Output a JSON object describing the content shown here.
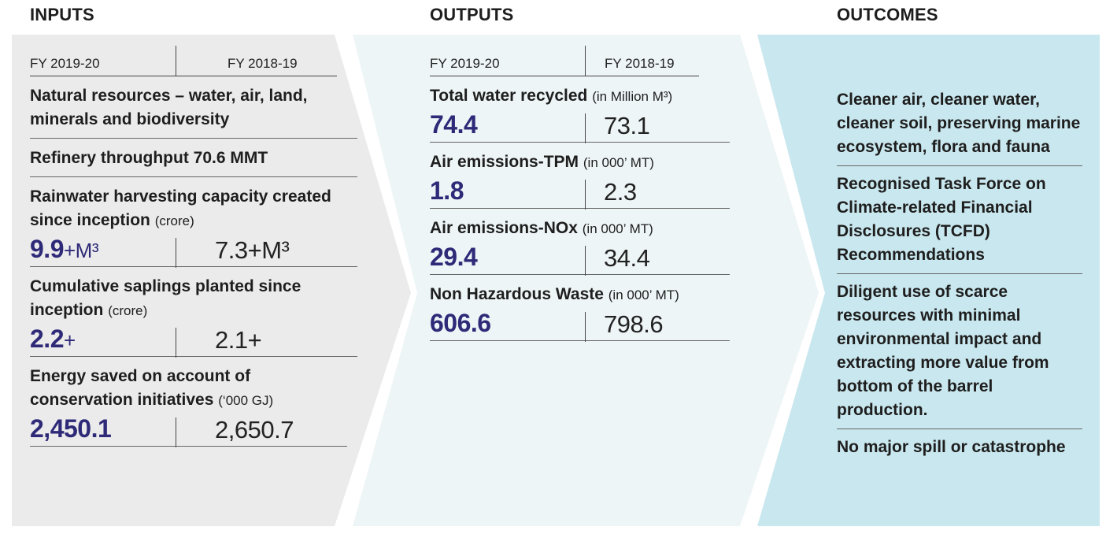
{
  "headings": {
    "inputs": "INPUTS",
    "outputs": "OUTPUTS",
    "outcomes": "OUTCOMES"
  },
  "colors": {
    "inputs_bg": "#ebebeb",
    "outputs_bg": "#eef5f7",
    "outcomes_bg": "#c9e7ee",
    "value_accent": "#2e2a78"
  },
  "fy_labels": {
    "current": "FY 2019-20",
    "previous": "FY 2018-19"
  },
  "inputs": {
    "items": [
      {
        "title": "Natural resources – water, air, land, minerals and biodiversity"
      },
      {
        "title": "Refinery throughput 70.6 MMT"
      },
      {
        "title": "Rainwater harvesting capacity created since inception",
        "unit": "(crore)",
        "current": "9.9",
        "current_suffix": "+M³",
        "previous": "7.3+M³"
      },
      {
        "title": "Cumulative saplings planted since inception",
        "unit": "(crore)",
        "current": "2.2",
        "current_suffix": "+",
        "previous": "2.1+"
      },
      {
        "title": "Energy saved on account of conservation initiatives",
        "unit": "(‘000 GJ)",
        "current": "2,450.1",
        "current_suffix": "",
        "previous": "2,650.7"
      }
    ]
  },
  "outputs": {
    "items": [
      {
        "title": "Total water recycled",
        "unit": "(in Million M³)",
        "current": "74.4",
        "previous": "73.1"
      },
      {
        "title": "Air emissions-TPM",
        "unit": "(in 000’ MT)",
        "current": "1.8",
        "previous": "2.3"
      },
      {
        "title": "Air emissions-NOx",
        "unit": "(in 000’ MT)",
        "current": "29.4",
        "previous": "34.4"
      },
      {
        "title": "Non Hazardous Waste",
        "unit": "(in 000’ MT)",
        "current": "606.6",
        "previous": "798.6"
      }
    ]
  },
  "outcomes": {
    "items": [
      "Cleaner air, cleaner water, cleaner soil, preserving marine ecosystem, flora and fauna",
      "Recognised Task Force on Climate-related Financial Disclosures (TCFD) Recommendations",
      "Diligent use of scarce resources with minimal environmental impact and extracting more value from bottom of the barrel production.",
      "No major spill or catastrophe"
    ]
  }
}
